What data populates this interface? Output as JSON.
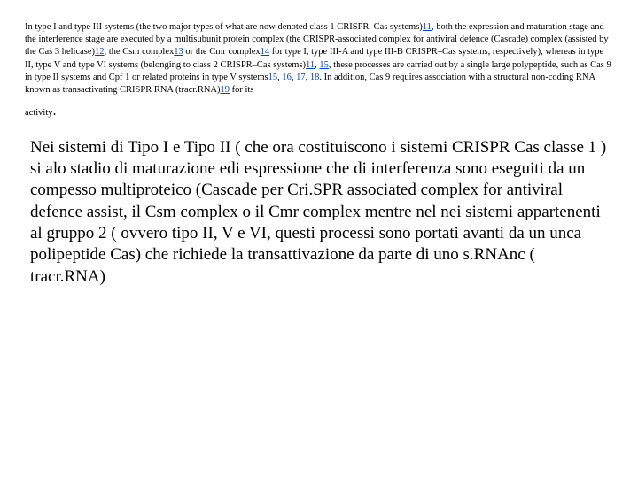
{
  "english": {
    "seg1": "In type I and type III systems (the two major types of what are now denoted class 1 CRISPR–Cas systems)",
    "ref11a": "11",
    "seg2": ", both the expression and maturation stage and the interference stage are executed by a multisubunit protein complex (the CRISPR-associated complex for antiviral defence (Cascade) complex (assisted by the Cas 3 helicase)",
    "ref12": "12",
    "seg3": ", the Csm complex",
    "ref13": "13",
    "seg4": " or the Cmr complex",
    "ref14": "14",
    "seg5": " for type I, type III-A and type III-B CRISPR–Cas systems, respectively), whereas in type II, type V and type VI systems (belonging to class 2 CRISPR–Cas systems)",
    "ref11b": "11",
    "seg6": ", ",
    "ref15a": "15",
    "seg7": ", these processes are carried out by a single large polypeptide, such as Cas 9 in type II systems and Cpf 1 or related proteins in type V systems",
    "ref15b": "15",
    "seg8": ", ",
    "ref16": "16",
    "seg9": ", ",
    "ref17": "17",
    "seg10": ", ",
    "ref18": "18",
    "seg11": ". In addition, Cas 9 requires association with a structural non-coding RNA known as transactivating CRISPR RNA (tracr.RNA)",
    "ref19": "19",
    "seg12": " for its",
    "activity": "activity",
    "period": "."
  },
  "italian": {
    "text": "Nei sistemi di Tipo I e Tipo II ( che ora costituiscono i sistemi CRISPR Cas classe 1 ) si alo stadio di maturazione edi espressione che di interferenza sono eseguiti da un compesso multiproteico (Cascade per Cri.SPR associated complex for antiviral defence assist, il Csm complex o il Cmr complex mentre nel nei sistemi appartenenti al gruppo 2 ( ovvero tipo II, V e VI, questi processi sono portati avanti da un unca polipeptide Cas) che richiede la transattivazione da parte di uno s.RNAnc ( tracr.RNA)"
  },
  "colors": {
    "link": "#0044cc",
    "text": "#000000",
    "background": "#ffffff"
  }
}
